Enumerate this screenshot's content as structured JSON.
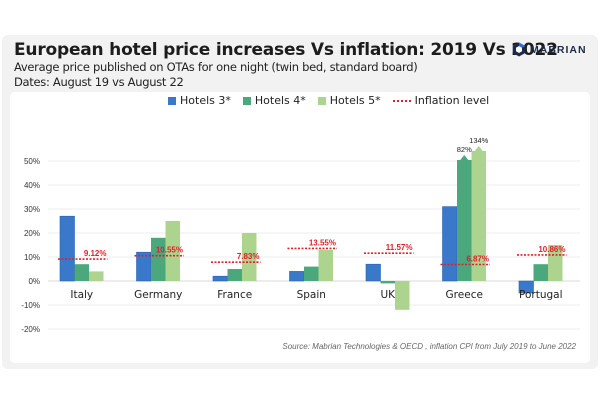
{
  "header": {
    "title": "European hotel price increases Vs inflation: 2019 Vs 2022",
    "subtitle": "Average price published on OTAs for one night (twin bed, standard board)",
    "dates": "Dates: August 19 vs August 22",
    "logo_text": "MABRIAN",
    "logo_icon": "hexagon-icon"
  },
  "colors": {
    "hotels3": "#3a78c9",
    "hotels4": "#4aa87c",
    "hotels5": "#acd48e",
    "inflation": "#e0202a",
    "grid": "#ececec"
  },
  "source": "Source: Mabrian Technologies & OECD , inflation CPI from July 2019 to June 2022",
  "chart_data": {
    "type": "bar",
    "title": "European hotel price increases Vs inflation: 2019 Vs 2022",
    "xlabel": "",
    "ylabel": "",
    "ylim": [
      -20,
      50
    ],
    "yticks": [
      50,
      40,
      30,
      20,
      10,
      0,
      -10,
      -20
    ],
    "ytick_labels": [
      "50%",
      "40%",
      "30%",
      "20%",
      "10%",
      "0%",
      "-10%",
      "-20%"
    ],
    "grid": true,
    "legend_position": "top-center",
    "categories": [
      "Italy",
      "Germany",
      "France",
      "Spain",
      "UK",
      "Greece",
      "Portugal"
    ],
    "series": [
      {
        "name": "Hotels 3*",
        "values": [
          27,
          12,
          2,
          4,
          7,
          31,
          -5
        ]
      },
      {
        "name": "Hotels 4*",
        "values": [
          7,
          18,
          5,
          6,
          -1,
          82,
          7
        ]
      },
      {
        "name": "Hotels 5*",
        "values": [
          4,
          25,
          20,
          13,
          -12,
          134,
          15
        ]
      }
    ],
    "inflation": {
      "name": "Inflation level",
      "values": [
        9.12,
        10.55,
        7.83,
        13.55,
        11.57,
        6.87,
        10.86
      ],
      "labels": [
        "9.12%",
        "10.55%",
        "7.83%",
        "13.55%",
        "11.57%",
        "6.87%",
        "10.86%"
      ]
    },
    "annotations": [
      {
        "category": "Greece",
        "series": "Hotels 4*",
        "text": "82%",
        "note": "bar truncated above axis"
      },
      {
        "category": "Greece",
        "series": "Hotels 5*",
        "text": "134%",
        "note": "bar truncated above axis"
      }
    ]
  }
}
